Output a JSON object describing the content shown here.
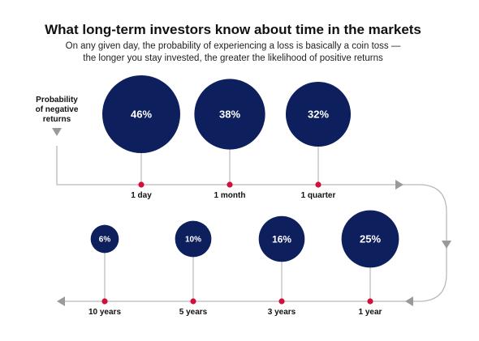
{
  "colors": {
    "bubble": "#0d1f5c",
    "marker": "#d0103a",
    "path": "#b9b9b9",
    "arrow": "#9a9a9a",
    "text": "#111111"
  },
  "title": "What long-term investors know about time in the markets",
  "subtitle": {
    "line1": "On any given day, the probability of experiencing a loss is basically a coin toss —",
    "line2": "the longer you stay invested, the greater the likelihood of positive returns"
  },
  "y_label": {
    "line1": "Probability",
    "line2": "of negative",
    "line3": "returns"
  },
  "chart_data": {
    "type": "bubble",
    "title": "What long-term investors know about time in the markets",
    "measure": "Probability of negative returns",
    "unit": "%",
    "categories": [
      "1 day",
      "1 month",
      "1 quarter",
      "1 year",
      "3 years",
      "5 years",
      "10 years"
    ],
    "values": [
      46,
      38,
      32,
      25,
      16,
      10,
      6
    ],
    "labels": [
      "46%",
      "38%",
      "32%",
      "25%",
      "16%",
      "10%",
      "6%"
    ],
    "legend": "none",
    "grid": false
  }
}
